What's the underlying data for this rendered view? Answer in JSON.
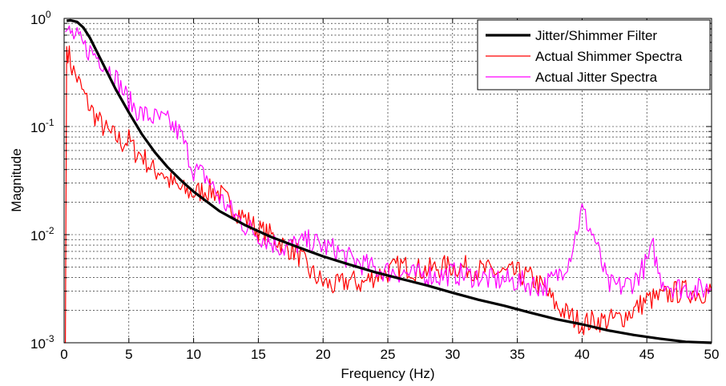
{
  "chart_data": {
    "type": "line",
    "title": "",
    "xlabel": "Frequency (Hz)",
    "ylabel": "Magnitude",
    "xlim": [
      0,
      50
    ],
    "ylim": [
      0.001,
      1
    ],
    "yscale": "log",
    "grid": "on (major solid, minor dotted)",
    "legend_position": "top-right",
    "x_ticks": [
      "0",
      "5",
      "10",
      "15",
      "20",
      "25",
      "30",
      "35",
      "40",
      "45",
      "50"
    ],
    "y_ticks": [
      {
        "base": "10",
        "exp": "-3"
      },
      {
        "base": "10",
        "exp": "-2"
      },
      {
        "base": "10",
        "exp": "-1"
      },
      {
        "base": "10",
        "exp": "0"
      }
    ],
    "series": [
      {
        "name": "Jitter/Shimmer Filter",
        "color": "#000000",
        "width": 3.2,
        "x": [
          0.2,
          0.5,
          1,
          1.5,
          2,
          2.5,
          3,
          4,
          5,
          6,
          7,
          8,
          9,
          10,
          12,
          14,
          16,
          18,
          20,
          22,
          24,
          26,
          28,
          30,
          32,
          34,
          36,
          38,
          40,
          42,
          44,
          46,
          48,
          50
        ],
        "y": [
          0.95,
          0.96,
          0.93,
          0.82,
          0.66,
          0.5,
          0.38,
          0.22,
          0.135,
          0.085,
          0.058,
          0.042,
          0.032,
          0.025,
          0.0165,
          0.0122,
          0.0095,
          0.0077,
          0.0063,
          0.0053,
          0.0045,
          0.0039,
          0.0034,
          0.0029,
          0.0025,
          0.0022,
          0.0019,
          0.00165,
          0.00148,
          0.0013,
          0.00118,
          0.00109,
          0.00102,
          0.00096
        ]
      },
      {
        "name": "Actual Shimmer Spectra",
        "color": "#ff0000",
        "width": 1.2,
        "x": [
          0,
          0.1,
          0.2,
          0.4,
          0.6,
          1,
          1.5,
          2,
          2.5,
          3,
          3.5,
          4,
          4.5,
          5,
          5.5,
          6,
          6.5,
          7,
          7.5,
          8,
          9,
          10,
          11,
          12,
          13,
          14,
          15,
          16,
          17,
          18,
          19,
          20,
          21,
          22,
          23,
          24,
          25,
          26,
          27,
          28,
          29,
          30,
          31,
          32,
          33,
          34,
          35,
          36,
          37,
          38,
          39,
          40,
          41,
          42,
          43,
          44,
          45,
          46,
          47,
          48,
          49,
          50
        ],
        "y": [
          0.001,
          0.001,
          0.55,
          0.45,
          0.35,
          0.28,
          0.2,
          0.15,
          0.12,
          0.1,
          0.085,
          0.08,
          0.07,
          0.075,
          0.058,
          0.055,
          0.045,
          0.038,
          0.04,
          0.032,
          0.026,
          0.024,
          0.026,
          0.024,
          0.018,
          0.014,
          0.011,
          0.0098,
          0.0079,
          0.0068,
          0.0045,
          0.0036,
          0.0033,
          0.0038,
          0.0035,
          0.0042,
          0.0045,
          0.0052,
          0.0048,
          0.0047,
          0.005,
          0.0051,
          0.005,
          0.0047,
          0.0046,
          0.0044,
          0.0044,
          0.004,
          0.0032,
          0.0022,
          0.0018,
          0.0015,
          0.0016,
          0.0016,
          0.0017,
          0.002,
          0.0025,
          0.0026,
          0.0029,
          0.003,
          0.0029,
          0.003
        ]
      },
      {
        "name": "Actual Jitter Spectra",
        "color": "#ff00ff",
        "width": 1.2,
        "x": [
          0.1,
          0.3,
          0.5,
          1,
          1.5,
          2,
          2.5,
          3,
          4,
          5,
          6,
          7,
          8,
          9,
          10,
          11,
          12,
          13,
          14,
          15,
          16,
          17,
          18,
          19,
          20,
          21,
          22,
          23,
          24,
          25,
          26,
          27,
          28,
          29,
          30,
          31,
          32,
          33,
          34,
          35,
          36,
          37,
          38,
          39,
          39.5,
          40,
          40.5,
          41,
          41.5,
          42,
          43,
          44,
          45,
          45.5,
          46,
          47,
          48,
          49,
          50
        ],
        "y": [
          0.75,
          0.8,
          0.72,
          0.65,
          0.55,
          0.5,
          0.45,
          0.4,
          0.28,
          0.17,
          0.13,
          0.12,
          0.11,
          0.085,
          0.04,
          0.034,
          0.022,
          0.016,
          0.012,
          0.01,
          0.0085,
          0.0075,
          0.0082,
          0.0087,
          0.0078,
          0.0072,
          0.006,
          0.0054,
          0.0048,
          0.0046,
          0.0045,
          0.0042,
          0.0043,
          0.0041,
          0.0044,
          0.0042,
          0.0041,
          0.0038,
          0.0038,
          0.0037,
          0.0035,
          0.0033,
          0.004,
          0.006,
          0.01,
          0.017,
          0.012,
          0.009,
          0.0055,
          0.0034,
          0.0033,
          0.0037,
          0.0055,
          0.0075,
          0.004,
          0.0033,
          0.0032,
          0.0031,
          0.0032
        ]
      }
    ]
  }
}
